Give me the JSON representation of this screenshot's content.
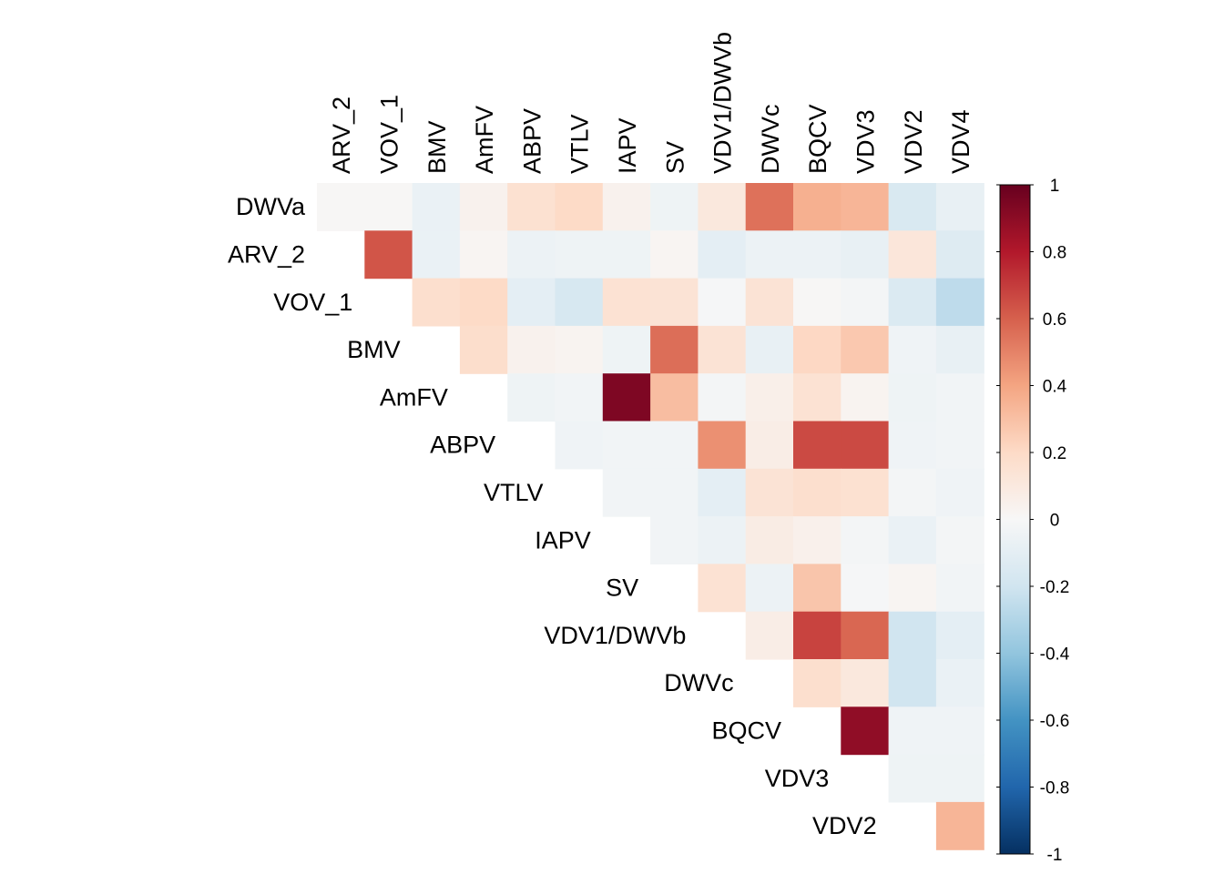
{
  "chart_data": {
    "type": "heatmap",
    "row_labels": [
      "DWVa",
      "ARV_2",
      "VOV_1",
      "BMV",
      "AmFV",
      "ABPV",
      "VTLV",
      "IAPV",
      "SV",
      "VDV1/DWVb",
      "DWVc",
      "BQCV",
      "VDV3",
      "VDV2"
    ],
    "col_labels": [
      "ARV_2",
      "VOV_1",
      "BMV",
      "AmFV",
      "ABPV",
      "VTLV",
      "IAPV",
      "SV",
      "VDV1/DWVb",
      "DWVc",
      "BQCV",
      "VDV3",
      "VDV2",
      "VDV4"
    ],
    "values": [
      [
        0.01,
        0.01,
        -0.07,
        0.04,
        0.16,
        0.2,
        0.04,
        -0.05,
        0.11,
        0.55,
        0.36,
        0.34,
        -0.16,
        -0.08
      ],
      [
        null,
        0.63,
        -0.07,
        0.02,
        -0.06,
        -0.05,
        -0.05,
        0.02,
        -0.1,
        -0.06,
        -0.06,
        -0.08,
        0.12,
        -0.13
      ],
      [
        null,
        null,
        0.17,
        0.2,
        -0.1,
        -0.17,
        0.15,
        0.14,
        -0.01,
        0.14,
        0.01,
        -0.02,
        -0.15,
        -0.26
      ],
      [
        null,
        null,
        null,
        0.18,
        0.04,
        0.03,
        -0.05,
        0.56,
        0.14,
        -0.08,
        0.21,
        0.27,
        -0.04,
        -0.08
      ],
      [
        null,
        null,
        null,
        null,
        -0.05,
        -0.03,
        0.94,
        0.31,
        -0.02,
        0.06,
        0.15,
        0.03,
        -0.05,
        -0.03
      ],
      [
        null,
        null,
        null,
        null,
        null,
        -0.04,
        -0.03,
        -0.03,
        0.46,
        0.07,
        0.66,
        0.66,
        -0.04,
        -0.03
      ],
      [
        null,
        null,
        null,
        null,
        null,
        null,
        -0.03,
        -0.03,
        -0.1,
        0.14,
        0.17,
        0.16,
        -0.02,
        -0.04
      ],
      [
        null,
        null,
        null,
        null,
        null,
        null,
        null,
        -0.03,
        -0.06,
        0.08,
        0.05,
        -0.02,
        -0.07,
        -0.02
      ],
      [
        null,
        null,
        null,
        null,
        null,
        null,
        null,
        null,
        0.15,
        -0.06,
        0.28,
        -0.01,
        0.02,
        -0.03
      ],
      [
        null,
        null,
        null,
        null,
        null,
        null,
        null,
        null,
        null,
        0.07,
        0.68,
        0.58,
        -0.2,
        -0.1
      ],
      [
        null,
        null,
        null,
        null,
        null,
        null,
        null,
        null,
        null,
        null,
        0.17,
        0.11,
        -0.2,
        -0.07
      ],
      [
        null,
        null,
        null,
        null,
        null,
        null,
        null,
        null,
        null,
        null,
        null,
        0.89,
        -0.04,
        -0.04
      ],
      [
        null,
        null,
        null,
        null,
        null,
        null,
        null,
        null,
        null,
        null,
        null,
        null,
        -0.05,
        -0.05
      ],
      [
        null,
        null,
        null,
        null,
        null,
        null,
        null,
        null,
        null,
        null,
        null,
        null,
        null,
        0.34
      ]
    ],
    "colorbar": {
      "range": [
        -1,
        1
      ],
      "ticks": [
        "1",
        "0.8",
        "0.6",
        "0.4",
        "0.2",
        "0",
        "-0.2",
        "-0.4",
        "-0.6",
        "-0.8",
        "-1"
      ],
      "tick_values": [
        1,
        0.8,
        0.6,
        0.4,
        0.2,
        0,
        -0.2,
        -0.4,
        -0.6,
        -0.8,
        -1
      ],
      "colors": [
        "#053061",
        "#2166AC",
        "#4393C3",
        "#92C5DE",
        "#D1E5F0",
        "#F7F7F7",
        "#FDDBC7",
        "#F4A582",
        "#D6604D",
        "#B2182B",
        "#67001F"
      ]
    }
  }
}
